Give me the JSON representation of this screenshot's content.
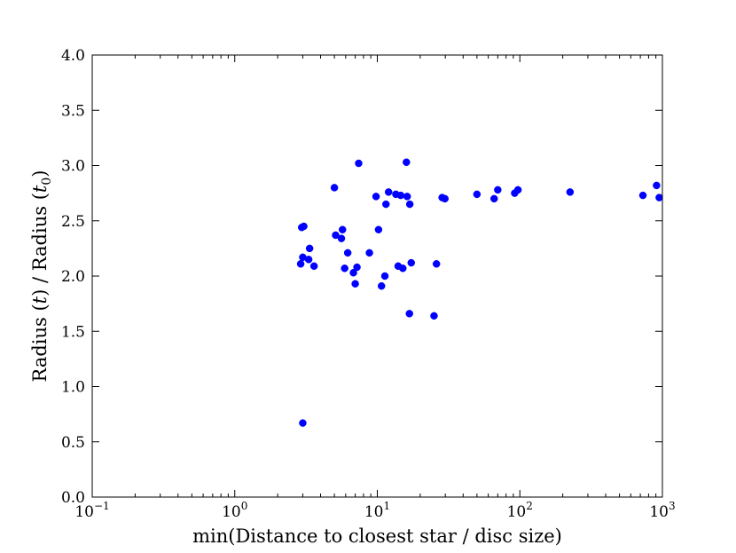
{
  "chart_data": {
    "type": "scatter",
    "title": "",
    "xlabel": "min(Distance to closest star / disc size)",
    "ylabel": "Radius (t) / Radius (t0)",
    "xscale": "log",
    "xlim": [
      0.1,
      1000
    ],
    "ylim": [
      0.0,
      4.0
    ],
    "grid": false,
    "legend": "none",
    "marker_color": "#0000ff",
    "x_ticks": [
      {
        "value": 0.1,
        "base": "10",
        "exp": "−1"
      },
      {
        "value": 1,
        "base": "10",
        "exp": "0"
      },
      {
        "value": 10,
        "base": "10",
        "exp": "1"
      },
      {
        "value": 100,
        "base": "10",
        "exp": "2"
      },
      {
        "value": 1000,
        "base": "10",
        "exp": "3"
      }
    ],
    "y_ticks": [
      {
        "value": 0.0,
        "label": "0.0"
      },
      {
        "value": 0.5,
        "label": "0.5"
      },
      {
        "value": 1.0,
        "label": "1.0"
      },
      {
        "value": 1.5,
        "label": "1.5"
      },
      {
        "value": 2.0,
        "label": "2.0"
      },
      {
        "value": 2.5,
        "label": "2.5"
      },
      {
        "value": 3.0,
        "label": "3.0"
      },
      {
        "value": 3.5,
        "label": "3.5"
      },
      {
        "value": 4.0,
        "label": "4.0"
      }
    ],
    "series": [
      {
        "points": [
          {
            "x": 2.9,
            "y": 2.11
          },
          {
            "x": 3.0,
            "y": 2.17
          },
          {
            "x": 2.95,
            "y": 2.44
          },
          {
            "x": 3.05,
            "y": 2.45
          },
          {
            "x": 3.0,
            "y": 0.67
          },
          {
            "x": 3.3,
            "y": 2.15
          },
          {
            "x": 3.35,
            "y": 2.25
          },
          {
            "x": 3.6,
            "y": 2.09
          },
          {
            "x": 5.0,
            "y": 2.8
          },
          {
            "x": 5.1,
            "y": 2.37
          },
          {
            "x": 5.6,
            "y": 2.34
          },
          {
            "x": 5.7,
            "y": 2.42
          },
          {
            "x": 5.9,
            "y": 2.07
          },
          {
            "x": 6.2,
            "y": 2.21
          },
          {
            "x": 6.8,
            "y": 2.03
          },
          {
            "x": 7.0,
            "y": 1.93
          },
          {
            "x": 7.2,
            "y": 2.08
          },
          {
            "x": 7.4,
            "y": 3.02
          },
          {
            "x": 8.8,
            "y": 2.21
          },
          {
            "x": 9.8,
            "y": 2.72
          },
          {
            "x": 10.2,
            "y": 2.42
          },
          {
            "x": 10.7,
            "y": 1.91
          },
          {
            "x": 11.3,
            "y": 2.0
          },
          {
            "x": 11.5,
            "y": 2.65
          },
          {
            "x": 12.0,
            "y": 2.76
          },
          {
            "x": 13.5,
            "y": 2.74
          },
          {
            "x": 14.0,
            "y": 2.09
          },
          {
            "x": 14.6,
            "y": 2.73
          },
          {
            "x": 15.1,
            "y": 2.07
          },
          {
            "x": 16.0,
            "y": 3.03
          },
          {
            "x": 16.2,
            "y": 2.72
          },
          {
            "x": 16.8,
            "y": 1.66
          },
          {
            "x": 16.9,
            "y": 2.65
          },
          {
            "x": 17.3,
            "y": 2.12
          },
          {
            "x": 25.0,
            "y": 1.64
          },
          {
            "x": 26.0,
            "y": 2.11
          },
          {
            "x": 28.5,
            "y": 2.71
          },
          {
            "x": 29.8,
            "y": 2.7
          },
          {
            "x": 50.0,
            "y": 2.74
          },
          {
            "x": 66.0,
            "y": 2.7
          },
          {
            "x": 70.0,
            "y": 2.78
          },
          {
            "x": 92.0,
            "y": 2.75
          },
          {
            "x": 97.0,
            "y": 2.78
          },
          {
            "x": 225.0,
            "y": 2.76
          },
          {
            "x": 730.0,
            "y": 2.73
          },
          {
            "x": 910.0,
            "y": 2.82
          },
          {
            "x": 950.0,
            "y": 2.71
          }
        ]
      }
    ]
  }
}
